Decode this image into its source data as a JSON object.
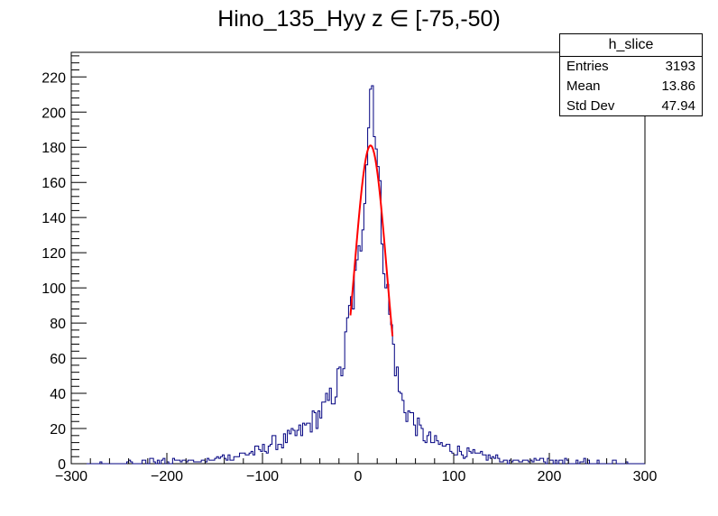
{
  "chart_data": {
    "type": "histogram",
    "title": "Hino_135_Hyy z  ∈ [-75,-50)",
    "xlabel": "",
    "ylabel": "",
    "xlim": [
      -300,
      300
    ],
    "ylim": [
      0,
      234
    ],
    "x_ticks": [
      "−300",
      "−200",
      "−100",
      "0",
      "100",
      "200",
      "300"
    ],
    "x_tick_values": [
      -300,
      -200,
      -100,
      0,
      100,
      200,
      300
    ],
    "y_ticks": [
      "0",
      "20",
      "40",
      "60",
      "80",
      "100",
      "120",
      "140",
      "160",
      "180",
      "200",
      "220"
    ],
    "y_tick_values": [
      0,
      20,
      40,
      60,
      80,
      100,
      120,
      140,
      160,
      180,
      200,
      220
    ],
    "hist_color": "#000080",
    "fit_color": "#ff0000",
    "histogram": {
      "name": "h_slice",
      "bin_width": 2,
      "x_range": [
        -300,
        300
      ],
      "peak_points": [
        [
          -300,
          0
        ],
        [
          -200,
          2
        ],
        [
          -150,
          3
        ],
        [
          -120,
          5
        ],
        [
          -100,
          8
        ],
        [
          -90,
          12
        ],
        [
          -80,
          12
        ],
        [
          -70,
          15
        ],
        [
          -60,
          18
        ],
        [
          -50,
          23
        ],
        [
          -40,
          28
        ],
        [
          -30,
          36
        ],
        [
          -25,
          40
        ],
        [
          -20,
          48
        ],
        [
          -15,
          58
        ],
        [
          -10,
          82
        ],
        [
          -5,
          96
        ],
        [
          0,
          110
        ],
        [
          4,
          135
        ],
        [
          8,
          170
        ],
        [
          12,
          205
        ],
        [
          14,
          222
        ],
        [
          18,
          195
        ],
        [
          22,
          155
        ],
        [
          26,
          128
        ],
        [
          30,
          100
        ],
        [
          34,
          80
        ],
        [
          38,
          62
        ],
        [
          42,
          45
        ],
        [
          46,
          35
        ],
        [
          50,
          30
        ],
        [
          55,
          28
        ],
        [
          60,
          22
        ],
        [
          70,
          15
        ],
        [
          80,
          12
        ],
        [
          90,
          10
        ],
        [
          100,
          8
        ],
        [
          120,
          5
        ],
        [
          150,
          3
        ],
        [
          200,
          2
        ],
        [
          250,
          1
        ],
        [
          300,
          0
        ]
      ]
    },
    "fit": {
      "type": "gaussian",
      "amplitude": 181,
      "mean": 13,
      "sigma": 17,
      "x_range": [
        -8,
        36
      ]
    },
    "stats": {
      "header": "h_slice",
      "rows": [
        {
          "label": "Entries",
          "value": "3193"
        },
        {
          "label": "Mean",
          "value": "13.86"
        },
        {
          "label": "Std Dev",
          "value": "47.94"
        }
      ]
    }
  }
}
